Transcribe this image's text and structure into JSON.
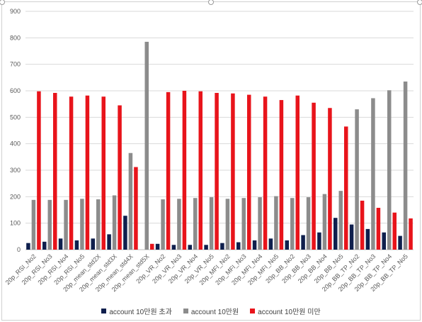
{
  "chart_data": {
    "type": "bar",
    "title": "",
    "xlabel": "",
    "ylabel": "",
    "ylim": [
      0,
      900
    ],
    "yticks": [
      0,
      100,
      200,
      300,
      400,
      500,
      600,
      700,
      800,
      900
    ],
    "grid": true,
    "legend_position": "bottom",
    "categories": [
      "20p_RSI_No2",
      "20p_RSI_No3",
      "20p_RSI_No4",
      "20p_RSI_No5",
      "20p_mean_std2X",
      "20p_mean_std3X",
      "20p_mean_std4X",
      "20p_mean_std5X",
      "20p_VR_No2",
      "20p_VR_No3",
      "20p_VR_No4",
      "20p_VR_No5",
      "20p_MFI_No2",
      "20p_MFI_No3",
      "20p_MFI_No4",
      "20p_MFI_No5",
      "20p_BB_No2",
      "20p_BB_No3",
      "20p_BB_No4",
      "20p_BB_No5",
      "20p_BB_TP_No2",
      "20p_BB_TP_No3",
      "20p_BB_TP_No4",
      "20p_BB_TP_No5"
    ],
    "series": [
      {
        "name": "account 10만원 초과",
        "color": "#0f1f4d",
        "values": [
          25,
          30,
          42,
          35,
          42,
          58,
          128,
          0,
          22,
          18,
          18,
          18,
          25,
          28,
          35,
          42,
          35,
          55,
          65,
          120,
          95,
          78,
          65,
          52
        ]
      },
      {
        "name": "account 10만원",
        "color": "#8c8c8c",
        "values": [
          188,
          188,
          188,
          192,
          190,
          205,
          365,
          785,
          190,
          192,
          195,
          198,
          192,
          195,
          198,
          202,
          195,
          198,
          210,
          222,
          530,
          572,
          602,
          635
        ]
      },
      {
        "name": "account 10만원 미만",
        "color": "#e8141b",
        "values": [
          598,
          592,
          578,
          582,
          578,
          545,
          312,
          22,
          595,
          600,
          598,
          592,
          590,
          585,
          578,
          565,
          582,
          555,
          535,
          465,
          185,
          158,
          140,
          118
        ]
      }
    ]
  }
}
